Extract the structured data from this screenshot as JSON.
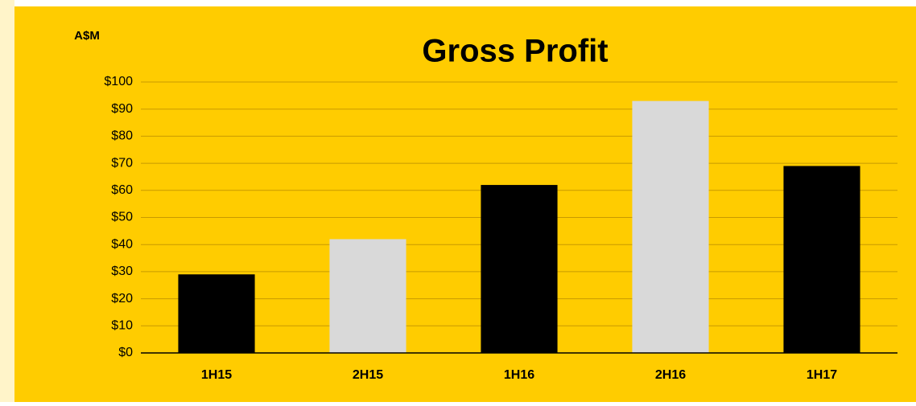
{
  "chart_data": {
    "type": "bar",
    "title": "Gross Profit",
    "y_axis_label": "A$M",
    "categories": [
      "1H15",
      "2H15",
      "1H16",
      "2H16",
      "1H17"
    ],
    "values": [
      29,
      42,
      62,
      93,
      69
    ],
    "colors": [
      "#000000",
      "#d9d9d9",
      "#000000",
      "#d9d9d9",
      "#000000"
    ],
    "ylim": [
      0,
      100
    ],
    "yticks": [
      {
        "value": 0,
        "label": "$0"
      },
      {
        "value": 10,
        "label": "$10"
      },
      {
        "value": 20,
        "label": "$20"
      },
      {
        "value": 30,
        "label": "$30"
      },
      {
        "value": 40,
        "label": "$40"
      },
      {
        "value": 50,
        "label": "$50"
      },
      {
        "value": 60,
        "label": "$60"
      },
      {
        "value": 70,
        "label": "$70"
      },
      {
        "value": 80,
        "label": "$80"
      },
      {
        "value": 90,
        "label": "$90"
      },
      {
        "value": 100,
        "label": "$100"
      }
    ],
    "grid": true
  }
}
